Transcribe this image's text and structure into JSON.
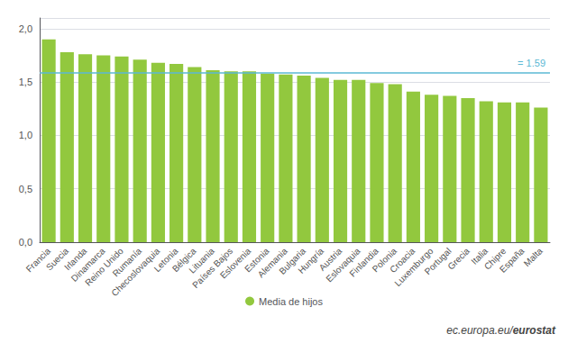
{
  "chart_data": {
    "type": "bar",
    "categories": [
      "Francia",
      "Suecia",
      "Irlanda",
      "Dinamarca",
      "Reino Unido",
      "Rumanía",
      "Checoslovaquia",
      "Letonia",
      "Bélgica",
      "Lituania",
      "Países Bajos",
      "Eslovenia",
      "Estonia",
      "Alemania",
      "Bulgaria",
      "Hungría",
      "Austria",
      "Eslovaquia",
      "Finlandia",
      "Polonia",
      "Croacia",
      "Luxemburgo",
      "Portugal",
      "Grecia",
      "Italia",
      "Chipre",
      "España",
      "Malta"
    ],
    "series": [
      {
        "name": "Media de hijos",
        "color": "#92C83E",
        "values": [
          1.9,
          1.78,
          1.76,
          1.75,
          1.74,
          1.71,
          1.68,
          1.67,
          1.64,
          1.61,
          1.6,
          1.6,
          1.58,
          1.57,
          1.56,
          1.54,
          1.52,
          1.52,
          1.49,
          1.48,
          1.41,
          1.38,
          1.37,
          1.35,
          1.32,
          1.31,
          1.31,
          1.26
        ]
      }
    ],
    "reference_line": {
      "value": 1.59,
      "label": "= 1.59",
      "color": "#5BB8D4"
    },
    "ylim": [
      0.0,
      2.1
    ],
    "yticks": [
      {
        "value": 0.0,
        "label": "0,0"
      },
      {
        "value": 0.5,
        "label": "0,5"
      },
      {
        "value": 1.0,
        "label": "1,0"
      },
      {
        "value": 1.5,
        "label": "1,5"
      },
      {
        "value": 2.0,
        "label": "2,0"
      }
    ],
    "grid": true,
    "legend": "bottom",
    "annotations": [
      "ec.europa.eu/",
      "eurostat"
    ]
  }
}
